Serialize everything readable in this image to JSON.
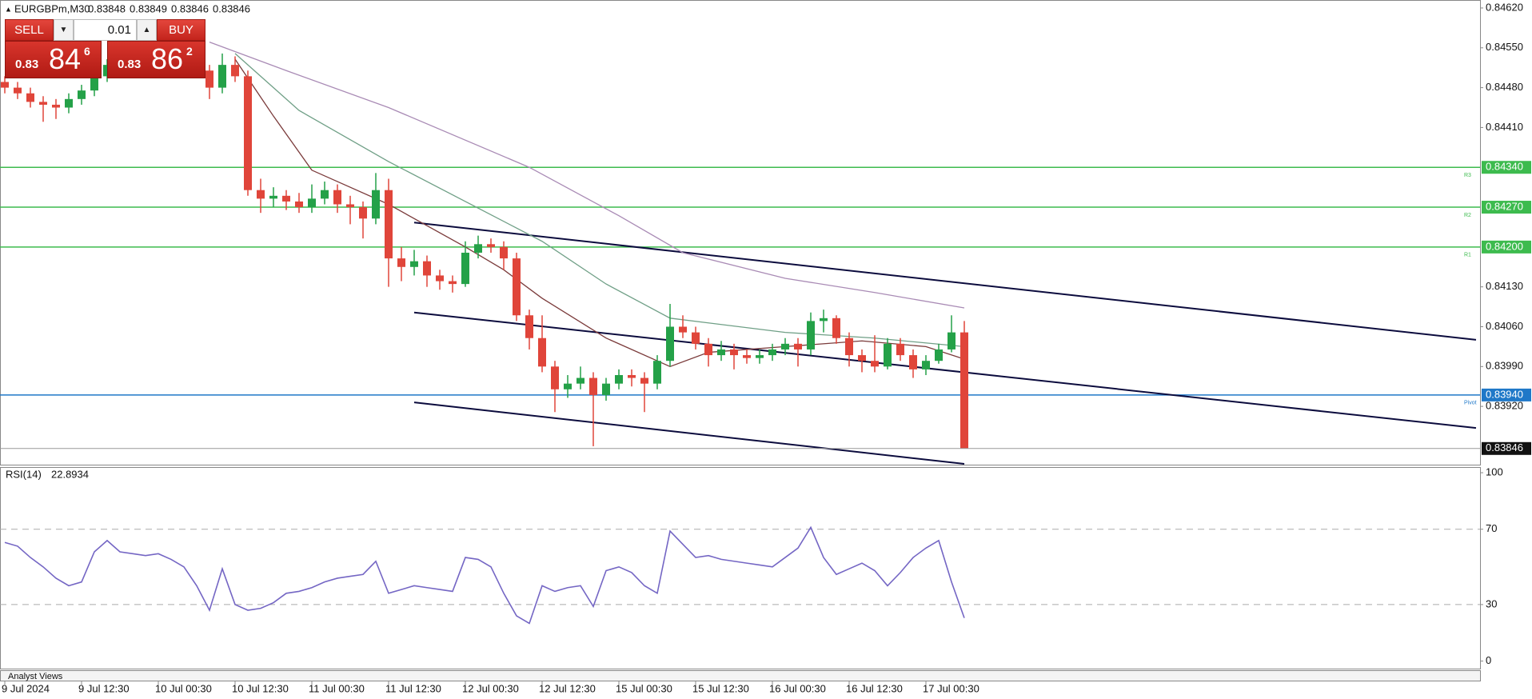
{
  "chart_data": [
    {
      "type": "candlestick",
      "symbol": "EURGBPm,M30",
      "ohlc": [
        0.83848,
        0.83849,
        0.83846,
        0.83846
      ],
      "categories": [
        "9 Jul 2024",
        null,
        null,
        null,
        null,
        null,
        "9 Jul 12:30",
        null,
        null,
        null,
        null,
        null,
        "10 Jul 00:30",
        null,
        null,
        null,
        null,
        null,
        "10 Jul 12:30",
        null,
        null,
        null,
        null,
        null,
        "11 Jul 00:30",
        null,
        null,
        null,
        null,
        null,
        "11 Jul 12:30",
        null,
        null,
        null,
        null,
        null,
        "12 Jul 00:30",
        null,
        null,
        null,
        null,
        null,
        "12 Jul 12:30",
        null,
        null,
        null,
        null,
        null,
        "15 Jul 00:30",
        null,
        null,
        null,
        null,
        null,
        "15 Jul 12:30",
        null,
        null,
        null,
        null,
        null,
        "16 Jul 00:30",
        null,
        null,
        null,
        null,
        null,
        "16 Jul 12:30",
        null,
        null,
        null,
        null,
        null,
        "17 Jul 00:30",
        null,
        null,
        null
      ],
      "open": [
        0.8449,
        0.8448,
        0.8447,
        0.84455,
        0.8445,
        0.84445,
        0.8446,
        0.84475,
        0.845,
        0.8452,
        0.8454,
        0.8455,
        0.8456,
        0.84555,
        0.84545,
        0.8453,
        0.8451,
        0.8448,
        0.8452,
        0.845,
        0.843,
        0.84285,
        0.8429,
        0.8428,
        0.8427,
        0.84285,
        0.843,
        0.84275,
        0.8427,
        0.8425,
        0.843,
        0.8418,
        0.84165,
        0.84175,
        0.8415,
        0.8414,
        0.84135,
        0.8419,
        0.84205,
        0.842,
        0.8418,
        0.8408,
        0.8404,
        0.8399,
        0.8395,
        0.8396,
        0.8397,
        0.8394,
        0.8396,
        0.83975,
        0.8397,
        0.8396,
        0.84,
        0.8406,
        0.8405,
        0.8403,
        0.8401,
        0.8402,
        0.8401,
        0.84005,
        0.8401,
        0.8402,
        0.8403,
        0.8402,
        0.8407,
        0.84075,
        0.8404,
        0.8401,
        0.84,
        0.8399,
        0.8403,
        0.8401,
        0.83985,
        0.84,
        0.8402,
        0.8405
      ],
      "high": [
        0.845,
        0.8449,
        0.8448,
        0.84465,
        0.8446,
        0.8447,
        0.84485,
        0.8451,
        0.8453,
        0.8455,
        0.8456,
        0.8457,
        0.8457,
        0.84565,
        0.84555,
        0.8454,
        0.8452,
        0.8454,
        0.84535,
        0.8451,
        0.8432,
        0.84305,
        0.843,
        0.84295,
        0.8431,
        0.84315,
        0.8431,
        0.8429,
        0.8428,
        0.8433,
        0.8432,
        0.842,
        0.84195,
        0.84185,
        0.8416,
        0.8415,
        0.8421,
        0.8422,
        0.84215,
        0.8421,
        0.8419,
        0.8409,
        0.8408,
        0.84,
        0.83975,
        0.8399,
        0.8398,
        0.8397,
        0.83985,
        0.83985,
        0.8398,
        0.8401,
        0.841,
        0.8408,
        0.8406,
        0.8404,
        0.84035,
        0.8403,
        0.8402,
        0.8402,
        0.8403,
        0.8404,
        0.8404,
        0.84085,
        0.8409,
        0.8408,
        0.8405,
        0.8402,
        0.84045,
        0.8404,
        0.8404,
        0.8402,
        0.8401,
        0.8403,
        0.8408,
        0.8407
      ],
      "low": [
        0.8447,
        0.8446,
        0.84445,
        0.8442,
        0.84425,
        0.84435,
        0.8445,
        0.84465,
        0.8449,
        0.8451,
        0.8453,
        0.8454,
        0.84545,
        0.84535,
        0.8452,
        0.845,
        0.8446,
        0.8447,
        0.8449,
        0.8429,
        0.8426,
        0.8427,
        0.84265,
        0.8426,
        0.8426,
        0.84275,
        0.8426,
        0.8424,
        0.84215,
        0.8424,
        0.8413,
        0.8414,
        0.8415,
        0.8413,
        0.84125,
        0.8412,
        0.8413,
        0.8418,
        0.8419,
        0.8416,
        0.8407,
        0.8402,
        0.8398,
        0.8391,
        0.83935,
        0.8395,
        0.8385,
        0.8393,
        0.8395,
        0.83955,
        0.8391,
        0.8395,
        0.8399,
        0.8404,
        0.8402,
        0.8399,
        0.84,
        0.83985,
        0.83995,
        0.83995,
        0.84,
        0.8401,
        0.8399,
        0.8401,
        0.8405,
        0.8403,
        0.8399,
        0.8398,
        0.8398,
        0.83985,
        0.84,
        0.8397,
        0.83975,
        0.83995,
        0.84015,
        0.83846
      ],
      "close": [
        0.8448,
        0.8447,
        0.84455,
        0.8445,
        0.84445,
        0.8446,
        0.84475,
        0.845,
        0.8452,
        0.8454,
        0.8455,
        0.8456,
        0.84555,
        0.84545,
        0.8453,
        0.8451,
        0.8448,
        0.8452,
        0.845,
        0.843,
        0.84285,
        0.8429,
        0.8428,
        0.8427,
        0.84285,
        0.843,
        0.84275,
        0.8427,
        0.8425,
        0.843,
        0.8418,
        0.84165,
        0.84175,
        0.8415,
        0.8414,
        0.84135,
        0.8419,
        0.84205,
        0.842,
        0.8418,
        0.8408,
        0.8404,
        0.8399,
        0.8395,
        0.8396,
        0.8397,
        0.8394,
        0.8396,
        0.83975,
        0.8397,
        0.8396,
        0.84,
        0.8406,
        0.8405,
        0.8403,
        0.8401,
        0.8402,
        0.8401,
        0.84005,
        0.8401,
        0.8402,
        0.8403,
        0.8402,
        0.8407,
        0.84075,
        0.8404,
        0.8401,
        0.84,
        0.8399,
        0.8403,
        0.8401,
        0.83985,
        0.84,
        0.8402,
        0.8405,
        0.83846
      ],
      "up_color": "#24a148",
      "down_color": "#e0453a",
      "ylim": [
        0.83819,
        0.84634
      ],
      "yticks": [
        {
          "value": 0.8462,
          "label": "0.84620"
        },
        {
          "value": 0.8455,
          "label": "0.84550"
        },
        {
          "value": 0.8448,
          "label": "0.84480"
        },
        {
          "value": 0.8441,
          "label": "0.84410"
        },
        {
          "value": 0.8413,
          "label": "0.84130"
        },
        {
          "value": 0.8406,
          "label": "0.84060"
        },
        {
          "value": 0.8399,
          "label": "0.83990"
        },
        {
          "value": 0.8392,
          "label": "0.83920"
        }
      ],
      "series": [
        {
          "color": "#a98bb5",
          "x": [
            16,
            22,
            30,
            41,
            48,
            53,
            61,
            68,
            75
          ],
          "values": [
            0.8456,
            0.8451,
            0.84445,
            0.8434,
            0.84255,
            0.8419,
            0.84145,
            0.8412,
            0.84093
          ]
        },
        {
          "color": "#6f9f86",
          "x": [
            18,
            23,
            30,
            36,
            42,
            47,
            52,
            61,
            68,
            75
          ],
          "values": [
            0.8454,
            0.8444,
            0.8435,
            0.8428,
            0.8421,
            0.84135,
            0.84075,
            0.8405,
            0.8404,
            0.84025
          ]
        },
        {
          "color": "#7a3a3a",
          "x": [
            18,
            21,
            24,
            30,
            36,
            39,
            42,
            47,
            52,
            55,
            61,
            67,
            72,
            75
          ],
          "values": [
            0.8453,
            0.8443,
            0.84335,
            0.84275,
            0.842,
            0.8416,
            0.8411,
            0.8404,
            0.8399,
            0.84015,
            0.84025,
            0.84035,
            0.84025,
            0.84003
          ]
        }
      ],
      "trendlines": [
        {
          "color": "#0b0b3d",
          "x": [
            32,
            115
          ],
          "values": [
            0.84243,
            0.84037
          ]
        },
        {
          "color": "#0b0b3d",
          "x": [
            32,
            115
          ],
          "values": [
            0.84085,
            0.83882
          ]
        },
        {
          "color": "#0b0b3d",
          "x": [
            32,
            75
          ],
          "values": [
            0.83927,
            0.83819
          ]
        }
      ],
      "levels": [
        {
          "name": "R3",
          "value": 0.8434,
          "label": "0.84340",
          "color": "#3dbb4e"
        },
        {
          "name": "R2",
          "value": 0.8427,
          "label": "0.84270",
          "color": "#3dbb4e"
        },
        {
          "name": "R1",
          "value": 0.842,
          "label": "0.84200",
          "color": "#3dbb4e"
        },
        {
          "name": "Pivot",
          "value": 0.8394,
          "label": "0.83940",
          "color": "#1f78c8"
        }
      ],
      "last_price": 0.83846
    },
    {
      "type": "line",
      "title": "RSI(14)",
      "color": "#7466c4",
      "values": [
        63,
        61,
        55,
        50,
        44,
        40,
        42,
        58,
        64,
        58,
        57,
        56,
        57,
        54,
        50,
        40,
        27,
        49,
        30,
        27,
        28,
        31,
        36,
        37,
        39,
        42,
        44,
        45,
        46,
        53,
        36,
        38,
        40,
        39,
        38,
        37,
        55,
        54,
        50,
        36,
        24,
        20,
        40,
        37,
        39,
        40,
        29,
        48,
        50,
        47,
        40,
        36,
        69,
        62,
        55,
        56,
        54,
        53,
        52,
        51,
        50,
        55,
        60,
        71,
        55,
        46,
        49,
        52,
        48,
        40,
        47,
        55,
        60,
        64,
        42,
        22.8934
      ],
      "ylim": [
        -4,
        103
      ],
      "yticks": [
        100,
        70,
        30,
        0
      ],
      "levels": [
        70,
        30
      ]
    }
  ],
  "trade_panel": {
    "sell": "SELL",
    "buy": "BUY",
    "lot": "0.01",
    "sell_price": {
      "small": "0.83",
      "big": "84",
      "sup": "6"
    },
    "buy_price": {
      "small": "0.83",
      "big": "86",
      "sup": "2"
    }
  },
  "footer_tab": "Analyst Views"
}
